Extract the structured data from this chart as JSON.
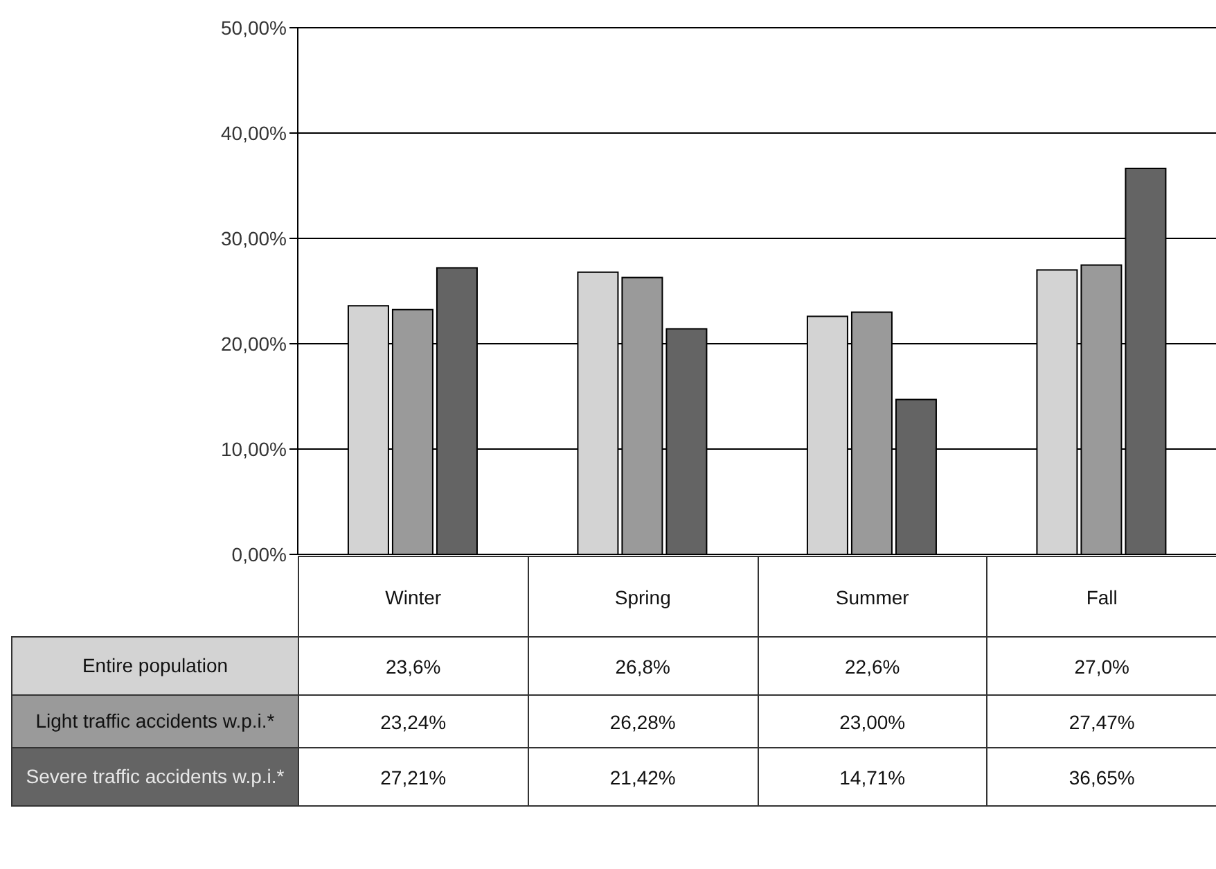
{
  "chart_data": {
    "type": "bar",
    "categories": [
      "Winter",
      "Spring",
      "Summer",
      "Fall"
    ],
    "series": [
      {
        "name": "Entire population",
        "color": "#d3d3d3",
        "values": [
          23.6,
          26.8,
          22.6,
          27.0
        ],
        "value_labels": [
          "23,6%",
          "26,8%",
          "22,6%",
          "27,0%"
        ]
      },
      {
        "name": "Light traffic accidents w.p.i.*",
        "color": "#9a9a9a",
        "values": [
          23.24,
          26.28,
          23.0,
          27.47
        ],
        "value_labels": [
          "23,24%",
          "26,28%",
          "23,00%",
          "27,47%"
        ]
      },
      {
        "name": "Severe traffic accidents w.p.i.*",
        "color": "#646464",
        "values": [
          27.21,
          21.42,
          14.71,
          36.65
        ],
        "value_labels": [
          "27,21%",
          "21,42%",
          "14,71%",
          "36,65%"
        ]
      }
    ],
    "ylim": [
      0,
      50
    ],
    "yticks": [
      {
        "value": 0,
        "label": "0,00%"
      },
      {
        "value": 10,
        "label": "10,00%"
      },
      {
        "value": 20,
        "label": "20,00%"
      },
      {
        "value": 30,
        "label": "30,00%"
      },
      {
        "value": 40,
        "label": "40,00%"
      },
      {
        "value": 50,
        "label": "50,00%"
      }
    ],
    "grid": "y"
  }
}
